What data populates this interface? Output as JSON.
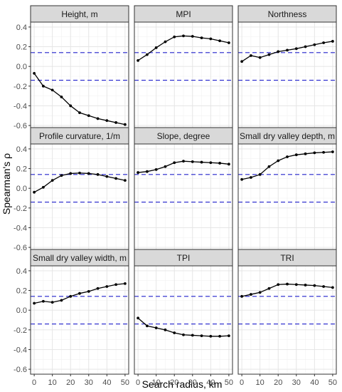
{
  "chart_data": {
    "type": "line",
    "facet_layout": "3x3",
    "xlabel": "Search radius, km",
    "ylabel": "Spearman's ρ",
    "x": [
      0,
      5,
      10,
      15,
      20,
      25,
      30,
      35,
      40,
      45,
      50
    ],
    "xlim": [
      -2,
      52
    ],
    "xticks": [
      0,
      10,
      20,
      30,
      40,
      50
    ],
    "ylim": [
      -0.65,
      0.45
    ],
    "yticks": [
      -0.6,
      -0.4,
      -0.2,
      0.0,
      0.2,
      0.4
    ],
    "ytick_labels": [
      "-0.6",
      "-0.4",
      "-0.2",
      "0.0",
      "0.2",
      "0.4"
    ],
    "grid": true,
    "reference_lines": {
      "values": [
        0.14,
        -0.14
      ],
      "color": "#2222cc",
      "style": "dashed"
    },
    "panels": [
      {
        "title": "Height, m",
        "values": [
          -0.07,
          -0.2,
          -0.24,
          -0.31,
          -0.4,
          -0.47,
          -0.5,
          -0.53,
          -0.55,
          -0.57,
          -0.59
        ]
      },
      {
        "title": "MPI",
        "values": [
          0.06,
          0.12,
          0.19,
          0.25,
          0.3,
          0.31,
          0.305,
          0.29,
          0.28,
          0.26,
          0.24
        ]
      },
      {
        "title": "Northness",
        "values": [
          0.05,
          0.11,
          0.09,
          0.12,
          0.15,
          0.165,
          0.18,
          0.2,
          0.22,
          0.24,
          0.255
        ]
      },
      {
        "title": "Profile curvature, 1/m",
        "values": [
          -0.04,
          0.01,
          0.08,
          0.13,
          0.15,
          0.155,
          0.15,
          0.14,
          0.12,
          0.1,
          0.08
        ]
      },
      {
        "title": "Slope, degree",
        "values": [
          0.16,
          0.17,
          0.19,
          0.22,
          0.26,
          0.275,
          0.27,
          0.265,
          0.26,
          0.255,
          0.245
        ]
      },
      {
        "title": "Small dry valley depth, m",
        "values": [
          0.09,
          0.11,
          0.14,
          0.22,
          0.28,
          0.32,
          0.34,
          0.35,
          0.36,
          0.365,
          0.37
        ]
      },
      {
        "title": "Small dry valley width, m",
        "values": [
          0.07,
          0.09,
          0.08,
          0.1,
          0.14,
          0.17,
          0.19,
          0.22,
          0.24,
          0.26,
          0.27
        ]
      },
      {
        "title": "TPI",
        "values": [
          -0.08,
          -0.16,
          -0.18,
          -0.2,
          -0.23,
          -0.25,
          -0.255,
          -0.26,
          -0.265,
          -0.265,
          -0.26
        ]
      },
      {
        "title": "TRI",
        "values": [
          0.14,
          0.16,
          0.18,
          0.22,
          0.26,
          0.265,
          0.26,
          0.255,
          0.25,
          0.24,
          0.23
        ]
      }
    ]
  }
}
